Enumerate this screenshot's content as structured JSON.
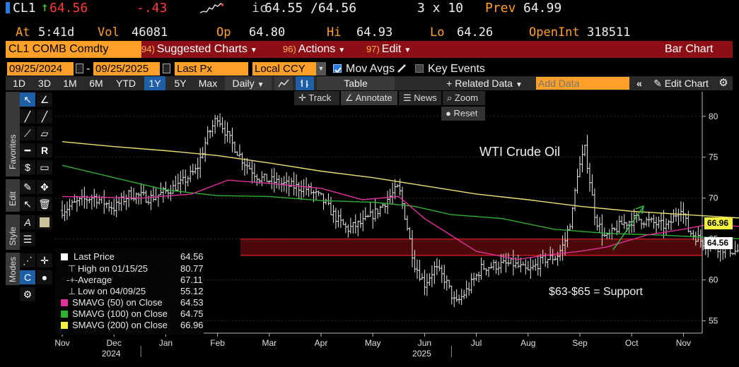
{
  "header": {
    "ticker": "CL1",
    "last": "64.56",
    "change": "-.43",
    "bid_ask_prefix": "ic",
    "bid_ask": "64.55 /64.56",
    "size": "3 x 10",
    "prev_label": "Prev",
    "prev": "64.99",
    "at_label": "At",
    "at": "5:41d",
    "vol_label": "Vol",
    "vol": "46081",
    "op_label": "Op",
    "op": "64.80",
    "hi_label": "Hi",
    "hi": "64.93",
    "lo_label": "Lo",
    "lo": "64.26",
    "oi_label": "OpenInt",
    "oi": "318511"
  },
  "menubar": {
    "security": "CL1 COMB Comdty",
    "items": [
      {
        "num": "94)",
        "label": "Suggested Charts"
      },
      {
        "num": "96)",
        "label": "Actions"
      },
      {
        "num": "97)",
        "label": "Edit"
      }
    ],
    "chart_type": "Bar Chart"
  },
  "settings": {
    "start_date": "09/25/2024",
    "end_date": "09/25/2025",
    "date_sep": "-",
    "field": "Last Px",
    "currency": "Local CCY",
    "mov_avgs": "Mov Avgs",
    "key_events": "Key Events"
  },
  "toolbar": {
    "periods": [
      "1D",
      "3D",
      "1M",
      "6M",
      "YTD",
      "1Y",
      "5Y",
      "Max"
    ],
    "selected_period": "1Y",
    "frequency": "Daily",
    "table": "Table",
    "related": "Related Data",
    "add_data_placeholder": "Add Data",
    "edit_chart": "Edit Chart"
  },
  "chart_tools": {
    "track": "Track",
    "annotate": "Annotate",
    "news": "News",
    "zoom": "Zoom",
    "reset": "Reset"
  },
  "side_tabs": [
    "Favorites",
    "Edit",
    "Style",
    "Modes"
  ],
  "legend": {
    "rows": [
      {
        "label": "Last Price",
        "value": "64.56",
        "color": "#ffffff"
      },
      {
        "label": "High on 01/15/25",
        "value": "80.77",
        "color": ""
      },
      {
        "label": "Average",
        "value": "67.11",
        "color": ""
      },
      {
        "label": "Low on 04/09/25",
        "value": "55.12",
        "color": ""
      },
      {
        "label": "SMAVG (50)   on Close",
        "value": "64.53",
        "color": "#e0309a"
      },
      {
        "label": "SMAVG (100)  on Close",
        "value": "64.75",
        "color": "#30b030"
      },
      {
        "label": "SMAVG (200)  on Close",
        "value": "66.96",
        "color": "#f0f040"
      }
    ]
  },
  "annotations": {
    "title": "WTI Crude Oil",
    "support": "$63-$65 = Support"
  },
  "chart_data": {
    "type": "bar",
    "title": "WTI Crude Oil",
    "y_ticks": [
      55,
      60,
      65,
      70,
      75,
      80
    ],
    "ylim": [
      53.5,
      83
    ],
    "x_ticks": [
      "Nov",
      "Dec",
      "Jan",
      "Feb",
      "Mar",
      "Apr",
      "May",
      "Jun",
      "Jul",
      "Aug",
      "Sep",
      "Oct",
      "Nov"
    ],
    "year_labels": [
      {
        "label": "2024",
        "at_month": "Dec"
      },
      {
        "label": "2025",
        "at_month": "Jun"
      }
    ],
    "support_zone": [
      63,
      65
    ],
    "price_badges": [
      {
        "label": "66.96",
        "value": 66.96,
        "color": "#f0f040"
      },
      {
        "label": "64.56",
        "value": 64.56,
        "color": "#ffffff"
      }
    ],
    "price_path": [
      [
        0,
        68.5
      ],
      [
        0.3,
        69.5
      ],
      [
        0.6,
        70.2
      ],
      [
        1.0,
        68.8
      ],
      [
        1.3,
        70.5
      ],
      [
        1.7,
        70.0
      ],
      [
        2.0,
        70.8
      ],
      [
        2.3,
        71.8
      ],
      [
        2.6,
        73.5
      ],
      [
        2.8,
        77.5
      ],
      [
        3.0,
        80.0
      ],
      [
        3.2,
        77.5
      ],
      [
        3.5,
        74.5
      ],
      [
        3.8,
        72.5
      ],
      [
        4.1,
        72.0
      ],
      [
        4.4,
        71.5
      ],
      [
        4.7,
        71.2
      ],
      [
        5.0,
        70.0
      ],
      [
        5.3,
        67.5
      ],
      [
        5.5,
        66.2
      ],
      [
        5.8,
        67.0
      ],
      [
        6.1,
        68.5
      ],
      [
        6.3,
        70.0
      ],
      [
        6.5,
        71.3
      ],
      [
        6.65,
        67.0
      ],
      [
        6.8,
        62.0
      ],
      [
        7.0,
        59.5
      ],
      [
        7.2,
        61.5
      ],
      [
        7.4,
        60.0
      ],
      [
        7.6,
        57.0
      ],
      [
        7.85,
        59.0
      ],
      [
        8.1,
        61.5
      ],
      [
        8.4,
        61.8
      ],
      [
        8.7,
        62.0
      ],
      [
        9.0,
        61.0
      ],
      [
        9.3,
        62.5
      ],
      [
        9.55,
        62.8
      ],
      [
        9.7,
        64.5
      ],
      [
        9.85,
        68.0
      ],
      [
        9.95,
        73.0
      ],
      [
        10.1,
        76.0
      ],
      [
        10.3,
        67.5
      ],
      [
        10.5,
        65.0
      ],
      [
        10.8,
        66.8
      ],
      [
        11.1,
        67.5
      ],
      [
        11.4,
        67.0
      ],
      [
        11.7,
        66.5
      ],
      [
        11.95,
        69.0
      ],
      [
        12.1,
        66.0
      ],
      [
        12.4,
        64.5
      ],
      [
        12.7,
        64.0
      ],
      [
        13.0,
        63.5
      ],
      [
        13.3,
        64.0
      ],
      [
        13.6,
        64.5
      ],
      [
        13.9,
        63.0
      ],
      [
        14.2,
        63.5
      ],
      [
        14.4,
        62.8
      ],
      [
        14.6,
        64.2
      ],
      [
        14.7,
        64.56
      ]
    ],
    "sma50": [
      [
        0,
        70.2
      ],
      [
        1.5,
        70.0
      ],
      [
        2.5,
        70.5
      ],
      [
        3.2,
        72.2
      ],
      [
        4.0,
        71.8
      ],
      [
        5.0,
        71.2
      ],
      [
        5.8,
        69.8
      ],
      [
        6.5,
        70.2
      ],
      [
        7.0,
        67.5
      ],
      [
        8.0,
        63.5
      ],
      [
        8.8,
        62.5
      ],
      [
        9.3,
        63.0
      ],
      [
        10.0,
        63.5
      ],
      [
        10.5,
        64.0
      ],
      [
        11.3,
        65.5
      ],
      [
        12.0,
        66.2
      ],
      [
        12.5,
        66.8
      ],
      [
        13.2,
        66.5
      ],
      [
        13.6,
        65.5
      ],
      [
        14.2,
        64.6
      ],
      [
        14.7,
        64.53
      ]
    ],
    "sma100": [
      [
        0,
        74.0
      ],
      [
        1.0,
        72.5
      ],
      [
        2.0,
        71.0
      ],
      [
        3.0,
        70.3
      ],
      [
        4.0,
        70.2
      ],
      [
        5.0,
        69.7
      ],
      [
        6.0,
        69.5
      ],
      [
        6.8,
        69.0
      ],
      [
        7.5,
        68.0
      ],
      [
        8.5,
        67.5
      ],
      [
        9.5,
        66.2
      ],
      [
        10.5,
        65.7
      ],
      [
        11.5,
        65.5
      ],
      [
        12.5,
        65.2
      ],
      [
        13.5,
        64.9
      ],
      [
        14.7,
        64.75
      ]
    ],
    "sma200": [
      [
        0,
        76.9
      ],
      [
        1.0,
        76.3
      ],
      [
        2.0,
        75.8
      ],
      [
        3.0,
        75.2
      ],
      [
        4.0,
        74.3
      ],
      [
        5.0,
        73.3
      ],
      [
        6.0,
        72.5
      ],
      [
        7.0,
        71.5
      ],
      [
        8.0,
        70.5
      ],
      [
        9.0,
        69.8
      ],
      [
        10.0,
        69.0
      ],
      [
        11.0,
        68.4
      ],
      [
        12.0,
        68.0
      ],
      [
        13.0,
        67.6
      ],
      [
        14.0,
        67.3
      ],
      [
        14.7,
        66.96
      ]
    ]
  }
}
